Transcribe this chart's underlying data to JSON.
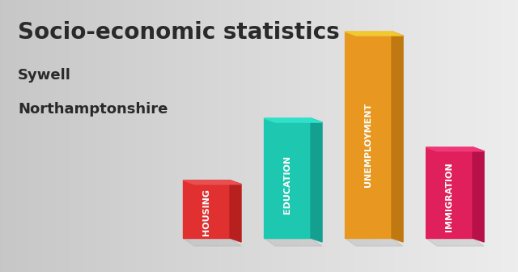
{
  "title_line1": "Socio-economic statistics",
  "title_line2": "Sywell",
  "title_line3": "Northamptonshire",
  "categories": [
    "HOUSING",
    "EDUCATION",
    "UNEMPLOYMENT",
    "IMMIGRATION"
  ],
  "values": [
    0.28,
    0.58,
    1.0,
    0.44
  ],
  "front_colors": [
    "#e03030",
    "#1ec8b0",
    "#e89820",
    "#e0205c"
  ],
  "side_colors": [
    "#b82020",
    "#14a090",
    "#c07810",
    "#b81048"
  ],
  "top_colors": [
    "#e85050",
    "#30e0c8",
    "#f0c830",
    "#f03878"
  ],
  "shadow_color": "#b0b0b0",
  "bg_color_left": "#c8c8c8",
  "bg_color_right": "#e8e8e8",
  "title_color": "#2a2a2a",
  "label_color": "#ffffff",
  "title_fontsize": 20,
  "subtitle_fontsize": 13,
  "label_fontsize": 8
}
